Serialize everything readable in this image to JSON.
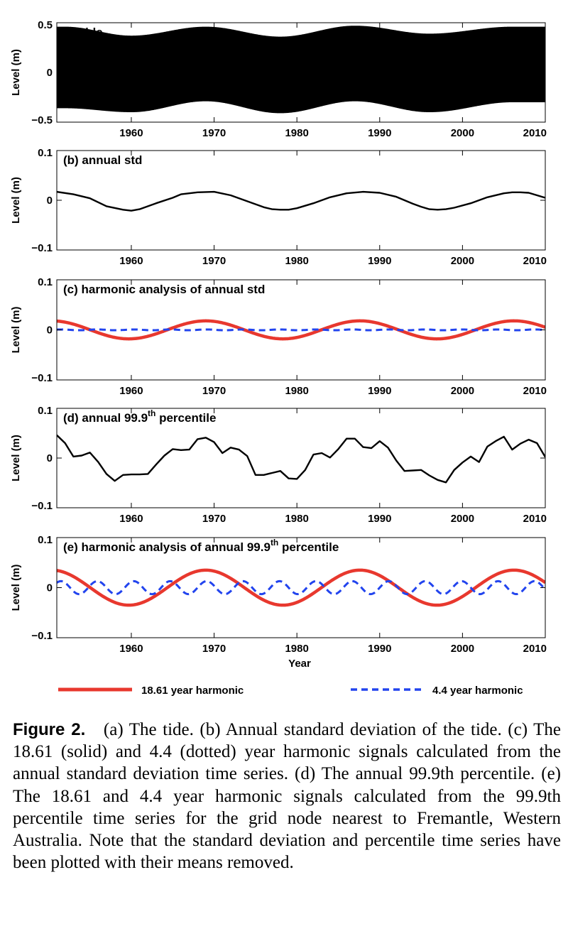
{
  "chart_data": [
    {
      "type": "line",
      "panel_title": "(a) tide",
      "ylabel": "Level (m)",
      "xlim": [
        1951,
        2010
      ],
      "ylim": [
        -0.5,
        0.5
      ],
      "xticks": [
        "1960",
        "1970",
        "1980",
        "1990",
        "2000",
        "2010"
      ],
      "yticks": [
        "0.5",
        "0",
        "−0.5"
      ],
      "series": [
        {
          "style": "black-solid",
          "color": "#000000",
          "signal": "dense tidal oscillation",
          "envelope_max": [
            0.46,
            0.37,
            0.46,
            0.36,
            0.47,
            0.39,
            0.46
          ],
          "envelope_x": [
            1952,
            1960,
            1969,
            1978,
            1987,
            1996,
            2006
          ],
          "envelope_min": [
            -0.36,
            -0.4,
            -0.29,
            -0.41,
            -0.29,
            -0.4,
            -0.3
          ]
        }
      ]
    },
    {
      "type": "line",
      "panel_title": "(b) annual std",
      "ylabel": "Level (m)",
      "xlim": [
        1951,
        2010
      ],
      "ylim": [
        -0.1,
        0.1
      ],
      "xticks": [
        "1960",
        "1970",
        "1980",
        "1990",
        "2000",
        "2010"
      ],
      "yticks": [
        "0.1",
        "0",
        "−0.1"
      ],
      "series": [
        {
          "style": "black-solid",
          "color": "#000000",
          "x": [
            1951,
            1953,
            1955,
            1957,
            1959,
            1960,
            1961,
            1963,
            1965,
            1966,
            1968,
            1970,
            1972,
            1974,
            1976,
            1977,
            1978,
            1979,
            1980,
            1982,
            1984,
            1986,
            1988,
            1990,
            1992,
            1994,
            1995,
            1996,
            1997,
            1998,
            1999,
            2001,
            2003,
            2005,
            2006,
            2007,
            2008,
            2010
          ],
          "y": [
            0.017,
            0.012,
            0.004,
            -0.012,
            -0.019,
            -0.021,
            -0.018,
            -0.006,
            0.005,
            0.012,
            0.016,
            0.017,
            0.01,
            -0.002,
            -0.014,
            -0.018,
            -0.019,
            -0.019,
            -0.016,
            -0.006,
            0.006,
            0.014,
            0.017,
            0.015,
            0.007,
            -0.007,
            -0.013,
            -0.018,
            -0.019,
            -0.018,
            -0.015,
            -0.006,
            0.006,
            0.014,
            0.016,
            0.016,
            0.015,
            0.005
          ]
        }
      ]
    },
    {
      "type": "line",
      "panel_title": "(c) harmonic analysis of annual std",
      "ylabel": "Level (m)",
      "xlim": [
        1951,
        2010
      ],
      "ylim": [
        -0.1,
        0.1
      ],
      "xticks": [
        "1960",
        "1970",
        "1980",
        "1990",
        "2000",
        "2010"
      ],
      "yticks": [
        "0.1",
        "0",
        "−0.1"
      ],
      "series": [
        {
          "name": "18.61 year harmonic",
          "style": "red-solid",
          "color": "#e8382e",
          "harmonic": {
            "amplitude": 0.018,
            "period": 18.61,
            "peak_year": 1969.0,
            "offset": 0
          }
        },
        {
          "name": "4.4 year harmonic",
          "style": "blue-dashed",
          "color": "#2244ee",
          "harmonic": {
            "amplitude": 0.0008,
            "period": 4.4,
            "peak_year": 1951.5,
            "offset": 0
          }
        }
      ]
    },
    {
      "type": "line",
      "panel_title": "(d) annual 99.9",
      "panel_title_sup": "th",
      "panel_title_suffix": " percentile",
      "ylabel": "Level (m)",
      "xlim": [
        1951,
        2010
      ],
      "ylim": [
        -0.1,
        0.1
      ],
      "xticks": [
        "1960",
        "1970",
        "1980",
        "1990",
        "2000",
        "2010"
      ],
      "yticks": [
        "0.1",
        "0",
        "−0.1"
      ],
      "series": [
        {
          "style": "black-solid",
          "color": "#000000",
          "x": [
            1951,
            1952,
            1953,
            1954,
            1955,
            1956,
            1957,
            1958,
            1959,
            1960,
            1961,
            1962,
            1963,
            1964,
            1965,
            1966,
            1967,
            1968,
            1969,
            1970,
            1971,
            1972,
            1973,
            1974,
            1975,
            1976,
            1977,
            1978,
            1979,
            1980,
            1981,
            1982,
            1983,
            1984,
            1985,
            1986,
            1987,
            1988,
            1989,
            1990,
            1991,
            1992,
            1993,
            1994,
            1995,
            1996,
            1997,
            1998,
            1999,
            2000,
            2001,
            2002,
            2003,
            2004,
            2005,
            2006,
            2007,
            2008,
            2009,
            2010
          ],
          "y": [
            0.046,
            0.03,
            0.003,
            0.005,
            0.011,
            -0.008,
            -0.032,
            -0.046,
            -0.034,
            -0.033,
            -0.033,
            -0.032,
            -0.013,
            0.005,
            0.018,
            0.016,
            0.017,
            0.038,
            0.041,
            0.032,
            0.01,
            0.021,
            0.017,
            0.004,
            -0.034,
            -0.034,
            -0.03,
            -0.026,
            -0.041,
            -0.042,
            -0.024,
            0.007,
            0.01,
            0.001,
            0.018,
            0.039,
            0.039,
            0.022,
            0.02,
            0.034,
            0.021,
            -0.005,
            -0.026,
            -0.025,
            -0.024,
            -0.035,
            -0.044,
            -0.049,
            -0.024,
            -0.009,
            0.003,
            -0.008,
            0.023,
            0.034,
            0.043,
            0.017,
            0.029,
            0.037,
            0.03,
            0.002
          ]
        }
      ]
    },
    {
      "type": "line",
      "panel_title": "(e) harmonic analysis of annual 99.9",
      "panel_title_sup": "th",
      "panel_title_suffix": " percentile",
      "ylabel": "Level (m)",
      "xlabel": "Year",
      "xlim": [
        1951,
        2010
      ],
      "ylim": [
        -0.1,
        0.1
      ],
      "xticks": [
        "1960",
        "1970",
        "1980",
        "1990",
        "2000",
        "2010"
      ],
      "yticks": [
        "0.1",
        "0",
        "−0.1"
      ],
      "series": [
        {
          "name": "18.61 year harmonic",
          "style": "red-solid",
          "color": "#e8382e",
          "harmonic": {
            "amplitude": 0.035,
            "period": 18.61,
            "peak_year": 1969.0,
            "offset": 0
          }
        },
        {
          "name": "4.4 year harmonic",
          "style": "blue-dashed",
          "color": "#2244ee",
          "harmonic": {
            "amplitude": 0.013,
            "period": 4.4,
            "peak_year": 1951.5,
            "offset": 0
          }
        }
      ]
    }
  ],
  "legend": {
    "placement": "bottom",
    "items": [
      {
        "label": "18.61 year harmonic",
        "color": "#e8382e",
        "style": "solid"
      },
      {
        "label": "4.4 year harmonic",
        "color": "#2244ee",
        "style": "dashed"
      }
    ]
  },
  "caption": {
    "label": "Figure 2.",
    "text": "(a) The tide. (b) Annual standard deviation of the tide. (c) The 18.61 (solid) and 4.4 (dotted) year harmonic signals calculated from the annual standard deviation time series. (d) The annual 99.9th percentile. (e) The 18.61 and 4.4 year harmonic signals calculated from the 99.9th percentile time series for the grid node nearest to Fremantle, Western Australia. Note that the standard deviation and percentile time series have been plotted with their means removed."
  }
}
